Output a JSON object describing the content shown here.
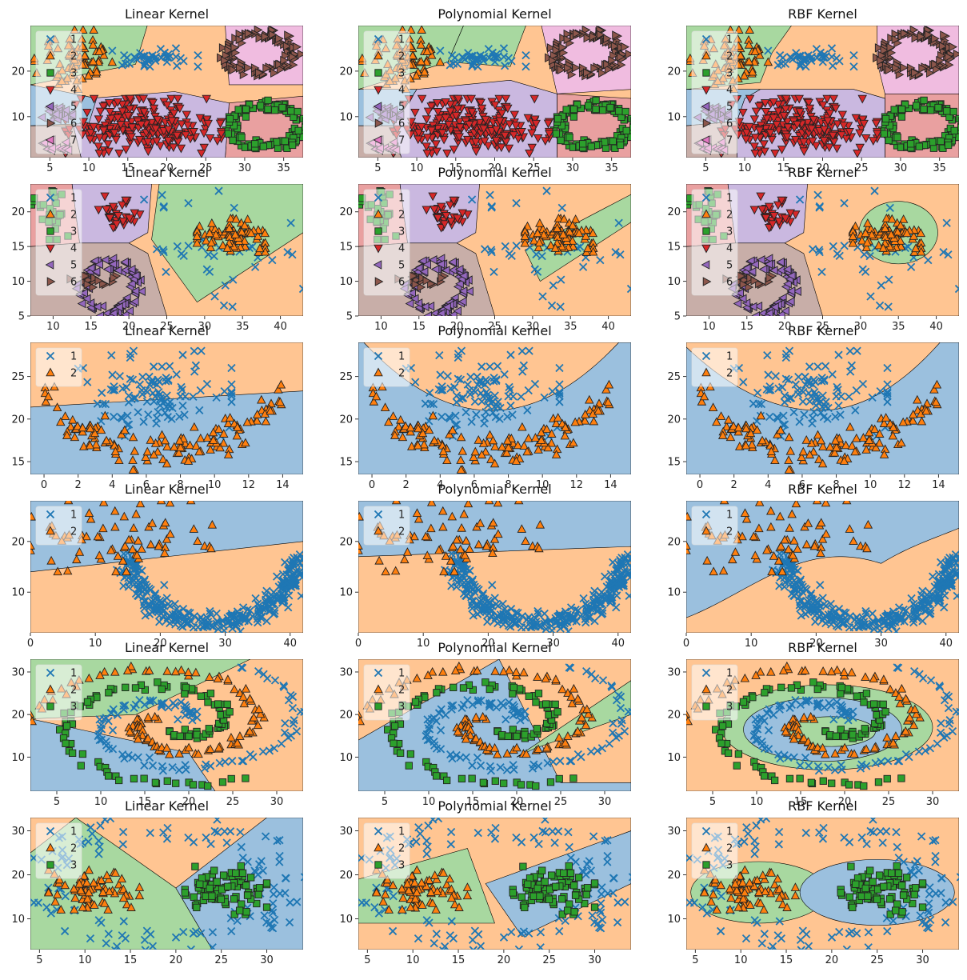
{
  "figure": {
    "colors": {
      "c1": "#1f77b4",
      "c2": "#ff7f0e",
      "c3": "#2ca02c",
      "c4": "#d62728",
      "c5": "#9467bd",
      "c6": "#8c564b",
      "c7": "#e377c2",
      "r1": "#9bc0de",
      "r2": "#ffc592",
      "r3": "#a8d8a0",
      "r4": "#e9a0a0",
      "r5": "#cab8e0",
      "r6": "#c8aea8",
      "r7": "#f0bce0"
    },
    "kernels": [
      "Linear Kernel",
      "Polynomial Kernel",
      "RBF Kernel"
    ]
  },
  "chart_data": [
    {
      "type": "scatter",
      "description_rows": "Row 1: seven clusters",
      "xlim": [
        2.5,
        37.5
      ],
      "ylim": [
        1,
        30
      ],
      "xticks": [
        5,
        10,
        15,
        20,
        25,
        30,
        35
      ],
      "yticks": [
        10,
        20
      ],
      "legend": [
        "1",
        "2",
        "3",
        "4",
        "5",
        "6",
        "7"
      ],
      "legend_position": "upper-left",
      "series": [
        {
          "name": "1",
          "marker": "x",
          "cluster": "band",
          "x": [
            13,
            24
          ],
          "y": [
            21,
            25
          ],
          "n": 45
        },
        {
          "name": "2",
          "marker": "triangle-up",
          "cluster": "blob",
          "x": [
            3,
            13
          ],
          "y": [
            16,
            29
          ],
          "n": 70
        },
        {
          "name": "3",
          "marker": "square",
          "cluster": "ring",
          "cx": 33,
          "cy": 8,
          "r": 4.5,
          "n": 110
        },
        {
          "name": "4",
          "marker": "triangle-down",
          "cluster": "blob",
          "x": [
            7,
            27
          ],
          "y": [
            2,
            14
          ],
          "n": 230
        },
        {
          "name": "5",
          "marker": "triangle-left",
          "cluster": "blob",
          "x": [
            4,
            8
          ],
          "y": [
            9,
            12
          ],
          "n": 30
        },
        {
          "name": "6",
          "marker": "triangle-right",
          "cluster": "ring",
          "cx": 32,
          "cy": 24,
          "r": 4.2,
          "n": 110
        },
        {
          "name": "7",
          "marker": "triangle-left",
          "cluster": "blob",
          "x": [
            4,
            8
          ],
          "y": [
            2,
            5
          ],
          "n": 15
        }
      ]
    },
    {
      "type": "scatter",
      "description_rows": "Row 2: six clusters",
      "xlim": [
        7,
        43
      ],
      "ylim": [
        5,
        24
      ],
      "xticks": [
        10,
        15,
        20,
        25,
        30,
        35,
        40
      ],
      "yticks": [
        5,
        10,
        15,
        20
      ],
      "legend": [
        "1",
        "2",
        "3",
        "4",
        "5",
        "6"
      ],
      "legend_position": "upper-left",
      "series": [
        {
          "name": "1",
          "marker": "x",
          "cluster": "scatter",
          "x": [
            22,
            43
          ],
          "y": [
            6,
            23
          ],
          "n": 40
        },
        {
          "name": "2",
          "marker": "triangle-up",
          "cluster": "blob",
          "x": [
            29,
            38
          ],
          "y": [
            14,
            19
          ],
          "n": 80
        },
        {
          "name": "3",
          "marker": "square",
          "cluster": "blob",
          "x": [
            7,
            12
          ],
          "y": [
            16,
            23
          ],
          "n": 30
        },
        {
          "name": "4",
          "marker": "triangle-down",
          "cluster": "blob",
          "x": [
            16,
            22
          ],
          "y": [
            16,
            23
          ],
          "n": 30
        },
        {
          "name": "5",
          "marker": "triangle-left",
          "cluster": "ring",
          "cx": 17.5,
          "cy": 9,
          "r": 3.5,
          "n": 90
        },
        {
          "name": "6",
          "marker": "triangle-right",
          "cluster": "blob",
          "x": [
            12,
            20
          ],
          "y": [
            9,
            11
          ],
          "n": 15
        }
      ]
    },
    {
      "type": "scatter",
      "description_rows": "Row 3: two clusters",
      "xlim": [
        -0.8,
        15.2
      ],
      "ylim": [
        13.5,
        29
      ],
      "xticks": [
        0,
        2,
        4,
        6,
        8,
        10,
        12,
        14
      ],
      "yticks": [
        15,
        20,
        25
      ],
      "legend": [
        "1",
        "2"
      ],
      "legend_position": "upper-left",
      "series": [
        {
          "name": "1",
          "marker": "x",
          "cluster": "blob",
          "x": [
            2,
            11
          ],
          "y": [
            18,
            28
          ],
          "n": 110
        },
        {
          "name": "2",
          "marker": "triangle-up",
          "cluster": "arc",
          "x": [
            0,
            14
          ],
          "y": [
            14,
            24
          ],
          "n": 130
        }
      ]
    },
    {
      "type": "scatter",
      "description_rows": "Row 4: two clusters",
      "xlim": [
        0,
        42
      ],
      "ylim": [
        2,
        28
      ],
      "xticks": [
        0,
        10,
        20,
        30,
        40
      ],
      "yticks": [
        10,
        20
      ],
      "legend": [
        "1",
        "2"
      ],
      "legend_position": "upper-left",
      "series": [
        {
          "name": "1",
          "marker": "x",
          "cluster": "arc",
          "x": [
            14,
            42
          ],
          "y": [
            2,
            18
          ],
          "n": 330
        },
        {
          "name": "2",
          "marker": "triangle-up",
          "cluster": "blob",
          "x": [
            0,
            28
          ],
          "y": [
            14,
            28
          ],
          "n": 70
        }
      ]
    },
    {
      "type": "scatter",
      "description_rows": "Row 5: three spirals",
      "xlim": [
        2,
        33
      ],
      "ylim": [
        2,
        33
      ],
      "xticks": [
        5,
        10,
        15,
        20,
        25,
        30
      ],
      "yticks": [
        10,
        20,
        30
      ],
      "legend": [
        "1",
        "2",
        "3"
      ],
      "legend_position": "upper-left",
      "series": [
        {
          "name": "1",
          "marker": "x",
          "cluster": "spiral",
          "n": 100
        },
        {
          "name": "2",
          "marker": "triangle-up",
          "cluster": "spiral",
          "n": 100
        },
        {
          "name": "3",
          "marker": "square",
          "cluster": "spiral",
          "n": 100
        }
      ]
    },
    {
      "type": "scatter",
      "description_rows": "Row 6: three clusters",
      "xlim": [
        4,
        34
      ],
      "ylim": [
        3,
        33
      ],
      "xticks": [
        5,
        10,
        15,
        20,
        25,
        30
      ],
      "yticks": [
        10,
        20,
        30
      ],
      "legend": [
        "1",
        "2",
        "3"
      ],
      "legend_position": "upper-left",
      "series": [
        {
          "name": "1",
          "marker": "x",
          "cluster": "ring",
          "cx": 19,
          "cy": 18,
          "r": 13,
          "n": 120
        },
        {
          "name": "2",
          "marker": "triangle-up",
          "cluster": "blob",
          "x": [
            6,
            16
          ],
          "y": [
            12,
            21
          ],
          "n": 80
        },
        {
          "name": "3",
          "marker": "square",
          "cluster": "blob",
          "x": [
            21,
            30
          ],
          "y": [
            11,
            22
          ],
          "n": 90
        }
      ]
    }
  ]
}
